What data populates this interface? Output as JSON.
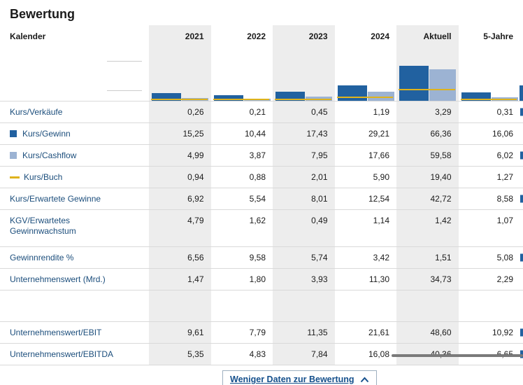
{
  "title": "Bewertung",
  "accents": {
    "dark_blue": "#2161a0",
    "light_blue": "#9cb3d3",
    "yellow": "#dfb31c",
    "label_blue": "#1c4e7c",
    "column_shade": "#ededed",
    "button_blue": "#15508c"
  },
  "table": {
    "corner_label": "Kalender",
    "columns": [
      {
        "label": "2021",
        "shaded": true
      },
      {
        "label": "2022",
        "shaded": false
      },
      {
        "label": "2023",
        "shaded": true
      },
      {
        "label": "2024",
        "shaded": false
      },
      {
        "label": "Aktuell",
        "shaded": true
      },
      {
        "label": "5-Jahre",
        "shaded": false
      }
    ],
    "rows": [
      {
        "label": "Kurs/Verkäufe",
        "values": [
          "0,26",
          "0,21",
          "0,45",
          "1,19",
          "3,29",
          "0,31"
        ]
      },
      {
        "label": "Kurs/Gewinn",
        "legend": "dark-blue-square",
        "values": [
          "15,25",
          "10,44",
          "17,43",
          "29,21",
          "66,36",
          "16,06"
        ]
      },
      {
        "label": "Kurs/Cashflow",
        "legend": "light-blue-square",
        "values": [
          "4,99",
          "3,87",
          "7,95",
          "17,66",
          "59,58",
          "6,02"
        ]
      },
      {
        "label": "Kurs/Buch",
        "legend": "yellow-line",
        "values": [
          "0,94",
          "0,88",
          "2,01",
          "5,90",
          "19,40",
          "1,27"
        ]
      },
      {
        "label": "Kurs/Erwartete Gewinne",
        "values": [
          "6,92",
          "5,54",
          "8,01",
          "12,54",
          "42,72",
          "8,58"
        ]
      },
      {
        "label": "KGV/Erwartetes Gewinnwachstum",
        "two_line": true,
        "values": [
          "4,79",
          "1,62",
          "0,49",
          "1,14",
          "1,42",
          "1,07"
        ]
      },
      {
        "label": "Gewinnrendite %",
        "values": [
          "6,56",
          "9,58",
          "5,74",
          "3,42",
          "1,51",
          "5,08"
        ]
      },
      {
        "label": "Unternehmenswert (Mrd.)",
        "values": [
          "1,47",
          "1,80",
          "3,93",
          "11,30",
          "34,73",
          "2,29"
        ]
      },
      {
        "label": "",
        "spacer": true,
        "values": [
          "",
          "",
          "",
          "",
          "",
          ""
        ]
      },
      {
        "label": "Unternehmenswert/EBIT",
        "values": [
          "9,61",
          "7,79",
          "11,35",
          "21,61",
          "48,60",
          "10,92"
        ]
      },
      {
        "label": "Unternehmenswert/EBITDA",
        "values": [
          "5,35",
          "4,83",
          "7,84",
          "16,08",
          "40,36",
          "6,65"
        ]
      }
    ]
  },
  "chart_data": {
    "type": "bar",
    "categories": [
      "2021",
      "2022",
      "2023",
      "2024",
      "Aktuell",
      "5-Jahre"
    ],
    "series": [
      {
        "name": "Kurs/Gewinn",
        "color": "#2161a0",
        "style": "bar",
        "values": [
          15.25,
          10.44,
          17.43,
          29.21,
          66.36,
          16.06
        ]
      },
      {
        "name": "Kurs/Cashflow",
        "color": "#9cb3d3",
        "style": "bar",
        "values": [
          4.99,
          3.87,
          7.95,
          17.66,
          59.58,
          6.02
        ]
      },
      {
        "name": "Kurs/Buch",
        "color": "#dfb31c",
        "style": "line",
        "values": [
          0.94,
          0.88,
          2.01,
          5.9,
          19.4,
          1.27
        ]
      }
    ],
    "title": "Bewertung",
    "xlabel": "Kalender",
    "ylabel": "",
    "ylim": [
      0,
      70
    ],
    "legend_position": "row-labels",
    "grid": false
  },
  "footer": {
    "toggle_label": "Weniger Daten zur Bewertung",
    "icon": "chevron-up-icon"
  }
}
